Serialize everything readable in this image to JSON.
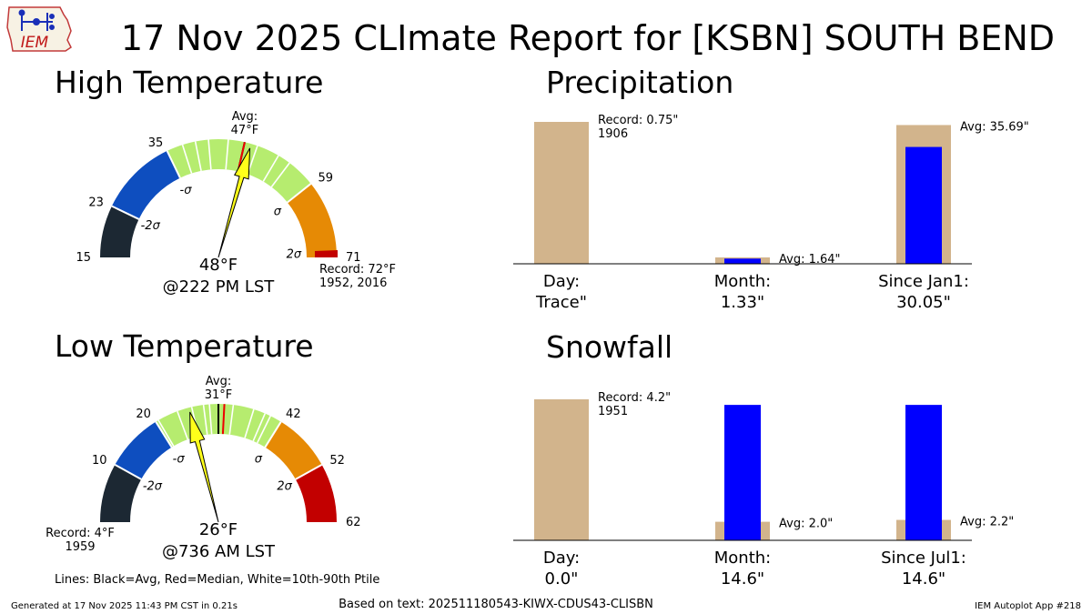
{
  "header": {
    "logo_text": "IEM",
    "title": "17 Nov 2025 CLImate Report for [KSBN] SOUTH BEND"
  },
  "footer": {
    "lines_note": "Lines: Black=Avg, Red=Median, White=10th-90th Ptile",
    "generated": "Generated at 17 Nov 2025 11:43 PM CST in 0.21s",
    "based_on": "Based on text: 202511180543-KIWX-CDUS43-CLISBN",
    "app": "IEM Autoplot App #218"
  },
  "colors": {
    "below_2sigma": "#1c2833",
    "neg_2sigma_to_neg_sigma": "#0e4ebf",
    "within_sigma": "#b6ec6f",
    "sigma_to_2sigma": "#e68a05",
    "above_2sigma": "#c20000",
    "needle": "#ffff1a",
    "record_bar": "#d2b48c",
    "observed_bar": "#0000ff",
    "avg_line": "#000000",
    "median_line": "#ee0000"
  },
  "chart_data": [
    {
      "type": "gauge",
      "title": "High Temperature",
      "range": [
        15,
        71
      ],
      "avg_label": "Avg:",
      "avg_value_label": "47°F",
      "avg": 47,
      "median": 47,
      "band_edges": [
        15,
        23,
        35,
        59,
        71
      ],
      "band_edge_labels": [
        "15",
        "23",
        "35",
        "59",
        "71"
      ],
      "sigma_labels": [
        "-2σ",
        "-σ",
        "σ",
        "2σ"
      ],
      "percentile_lines": [
        37.5,
        39.5,
        41.5,
        44.5,
        49,
        52.5,
        54.5
      ],
      "observed": 48,
      "observed_label": "48°F",
      "observed_time": "@222 PM LST",
      "record_value": 72,
      "record_lines": [
        "Record: 72°F",
        "1952, 2016"
      ]
    },
    {
      "type": "gauge",
      "title": "Low Temperature",
      "range": [
        0,
        62
      ],
      "avg_label": "Avg:",
      "avg_value_label": "31°F",
      "avg": 31,
      "median": 32,
      "band_edges": [
        0,
        10,
        20,
        42,
        52,
        62
      ],
      "band_edge_labels": [
        "",
        "10",
        "20",
        "42",
        "52",
        "62"
      ],
      "sigma_labels": [
        "-2σ",
        "-σ",
        "σ",
        "2σ"
      ],
      "percentile_lines": [
        20.5,
        24,
        26.5,
        28.5,
        29.5,
        33.5,
        37,
        39,
        40
      ],
      "observed": 26,
      "observed_label": "26°F",
      "observed_time": "@736 AM LST",
      "record_value": 4,
      "record_lines": [
        "Record: 4°F",
        "1959"
      ]
    },
    {
      "type": "bar",
      "title": "Precipitation",
      "ylim": [
        0,
        36.5
      ],
      "groups": [
        {
          "category": "Day:",
          "value_label": "Trace\"",
          "observed": 0,
          "record": 0.75,
          "avg": null,
          "note_lines": [
            "Record: 0.75\"",
            "1906"
          ]
        },
        {
          "category": "Month:",
          "value_label": "1.33\"",
          "observed": 1.33,
          "record": null,
          "avg": 1.64,
          "note_lines": [
            "Avg: 1.64\""
          ]
        },
        {
          "category": "Since Jan1:",
          "value_label": "30.05\"",
          "observed": 30.05,
          "record": null,
          "avg": 35.69,
          "note_lines": [
            "Avg: 35.69\""
          ]
        }
      ]
    },
    {
      "type": "bar",
      "title": "Snowfall",
      "ylim": [
        0,
        15.2
      ],
      "groups": [
        {
          "category": "Day:",
          "value_label": "0.0\"",
          "observed": 0,
          "record": 4.2,
          "avg": null,
          "note_lines": [
            "Record: 4.2\"",
            "1951"
          ]
        },
        {
          "category": "Month:",
          "value_label": "14.6\"",
          "observed": 14.6,
          "record": null,
          "avg": 2.0,
          "note_lines": [
            "Avg: 2.0\""
          ]
        },
        {
          "category": "Since Jul1:",
          "value_label": "14.6\"",
          "observed": 14.6,
          "record": null,
          "avg": 2.2,
          "note_lines": [
            "Avg: 2.2\""
          ]
        }
      ]
    }
  ]
}
